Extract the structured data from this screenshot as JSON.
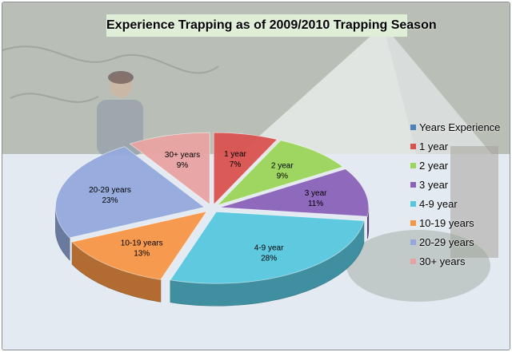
{
  "chart_data": {
    "type": "pie",
    "title": "Experience Trapping as of  2009/2010 Trapping Season",
    "legend_position": "right",
    "legend_title_entry": {
      "name": "Years Experience",
      "color": "#4f81bd"
    },
    "slices": [
      {
        "name": "1 year",
        "value": 7,
        "label": "7%",
        "color": "#d9524f"
      },
      {
        "name": "2 year",
        "value": 9,
        "label": "9%",
        "color": "#9bd55a"
      },
      {
        "name": "3 year",
        "value": 11,
        "label": "11%",
        "color": "#8a62b8"
      },
      {
        "name": "4-9 year",
        "value": 28,
        "label": "28%",
        "color": "#57c7de"
      },
      {
        "name": "10-19 years",
        "value": 13,
        "label": "13%",
        "color": "#f79646"
      },
      {
        "name": "20-29 years",
        "value": 23,
        "label": "23%",
        "color": "#93a9dc"
      },
      {
        "name": "30+ years",
        "value": 9,
        "label": "9%",
        "color": "#e8a3a1"
      }
    ]
  }
}
